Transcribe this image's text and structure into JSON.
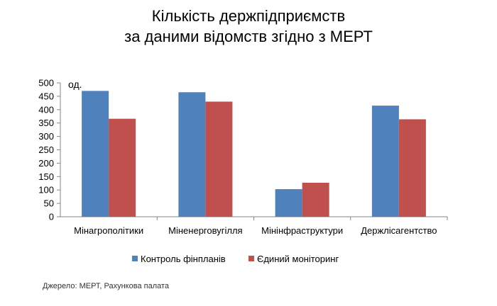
{
  "title": {
    "line1": "Кількість держпідприємств",
    "line2": "за даними відомств згідно з МЕРТ"
  },
  "source_note": "Джерело: МЕРТ, Рахункова палата",
  "chart_data": {
    "type": "bar",
    "title": "Кількість держпідприємств за даними відомств згідно з МЕРТ",
    "unit_label": "од.",
    "xlabel": "",
    "ylabel": "",
    "ylim": [
      0,
      500
    ],
    "yticks": [
      0,
      50,
      100,
      150,
      200,
      250,
      300,
      350,
      400,
      450,
      500
    ],
    "categories": [
      "Мінагрополітики",
      "Міненерговугілля",
      "Мінінфраструктури",
      "Держлісагентство"
    ],
    "series": [
      {
        "name": "Контроль фінпланів",
        "color": "#4f81bd",
        "values": [
          470,
          465,
          103,
          415
        ]
      },
      {
        "name": "Єдиний моніторинг",
        "color": "#c0504d",
        "values": [
          366,
          430,
          127,
          364
        ]
      }
    ],
    "grid": false,
    "legend_position": "bottom"
  }
}
